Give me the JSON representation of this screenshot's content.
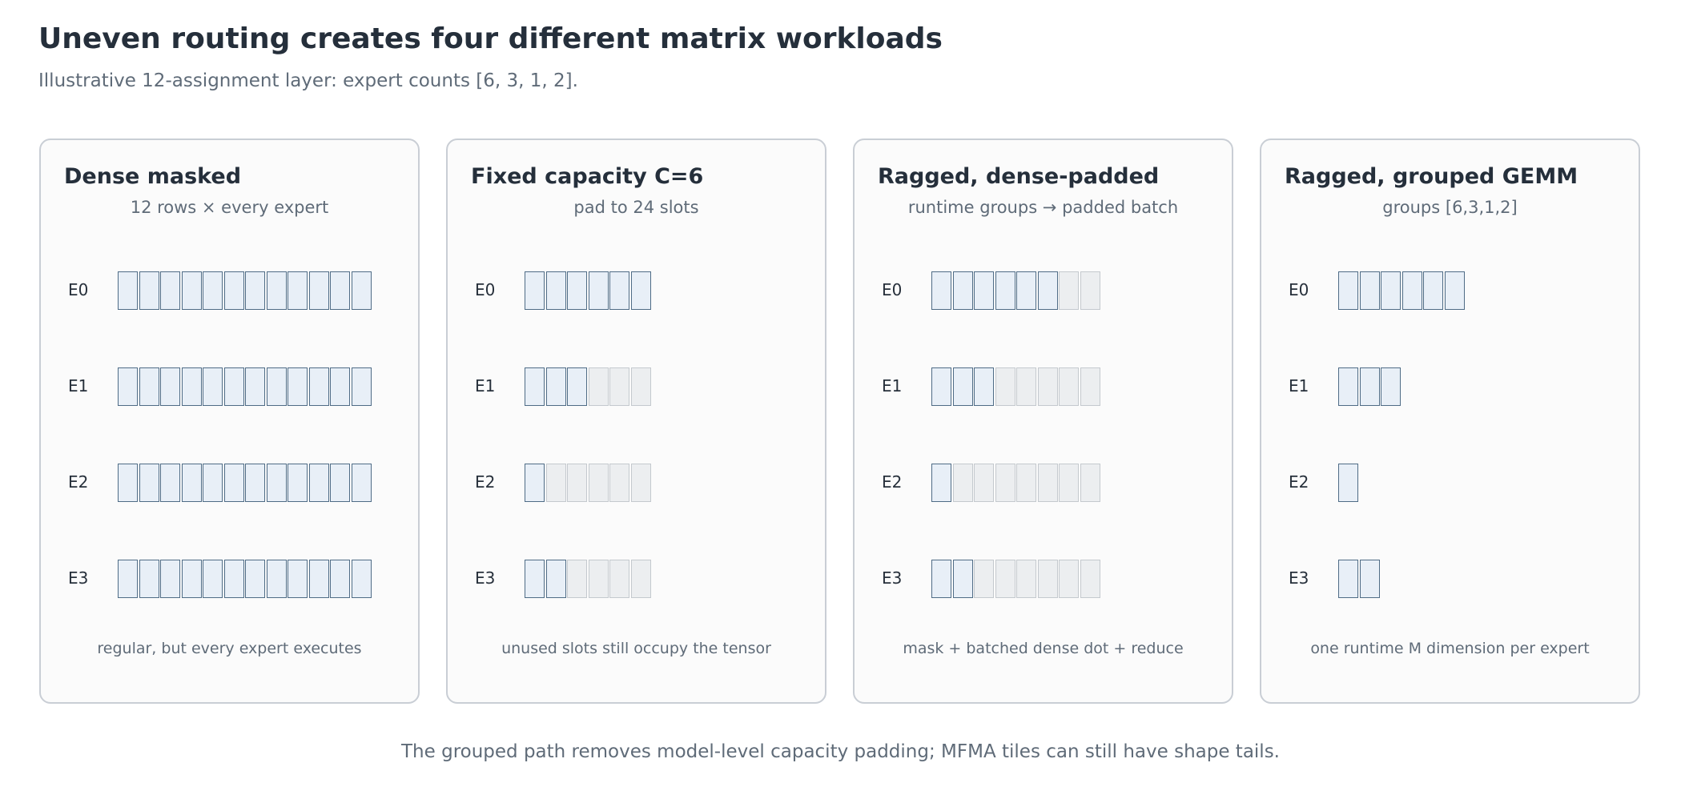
{
  "title": "Uneven routing creates four different matrix workloads",
  "subtitle": "Illustrative 12-assignment layer: expert counts [6, 3, 1, 2].",
  "footer": "The grouped path removes model-level capacity padding; MFMA tiles can still have shape tails.",
  "colors": {
    "used_fill": "#e8eff7",
    "used_stroke": "#4f6c86",
    "pad_fill": "#eceef0",
    "pad_stroke": "#c4c9ce"
  },
  "panels": [
    {
      "title": "Dense masked",
      "subtitle": "12 rows × every expert",
      "note": "regular, but every expert executes",
      "rows": [
        {
          "label": "E0",
          "used": 12,
          "padded": 0
        },
        {
          "label": "E1",
          "used": 12,
          "padded": 0
        },
        {
          "label": "E2",
          "used": 12,
          "padded": 0
        },
        {
          "label": "E3",
          "used": 12,
          "padded": 0
        }
      ]
    },
    {
      "title": "Fixed capacity C=6",
      "subtitle": "pad to 24 slots",
      "note": "unused slots still occupy the tensor",
      "rows": [
        {
          "label": "E0",
          "used": 6,
          "padded": 0
        },
        {
          "label": "E1",
          "used": 3,
          "padded": 3
        },
        {
          "label": "E2",
          "used": 1,
          "padded": 5
        },
        {
          "label": "E3",
          "used": 2,
          "padded": 4
        }
      ]
    },
    {
      "title": "Ragged, dense-padded",
      "subtitle": "runtime groups → padded batch",
      "note": "mask + batched dense dot + reduce",
      "rows": [
        {
          "label": "E0",
          "used": 6,
          "padded": 2
        },
        {
          "label": "E1",
          "used": 3,
          "padded": 5
        },
        {
          "label": "E2",
          "used": 1,
          "padded": 7
        },
        {
          "label": "E3",
          "used": 2,
          "padded": 6
        }
      ]
    },
    {
      "title": "Ragged, grouped GEMM",
      "subtitle": "groups [6,3,1,2]",
      "note": "one runtime M dimension per expert",
      "rows": [
        {
          "label": "E0",
          "used": 6,
          "padded": 0
        },
        {
          "label": "E1",
          "used": 3,
          "padded": 0
        },
        {
          "label": "E2",
          "used": 1,
          "padded": 0
        },
        {
          "label": "E3",
          "used": 2,
          "padded": 0
        }
      ]
    }
  ]
}
